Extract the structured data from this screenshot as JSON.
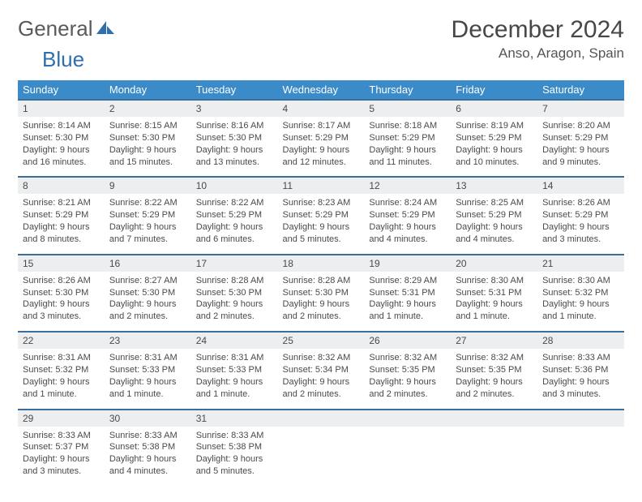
{
  "brand": {
    "word1": "General",
    "word2": "Blue",
    "word1_color": "#5a5a5a",
    "word2_color": "#2f6fae",
    "icon_fill": "#2f6fae"
  },
  "header": {
    "title": "December 2024",
    "location": "Anso, Aragon, Spain"
  },
  "colors": {
    "header_bg": "#3b8bc8",
    "header_text": "#ffffff",
    "row_divider": "#3b6e9a",
    "daynum_bg": "#eceeef",
    "text": "#4a4a4a",
    "page_bg": "#ffffff"
  },
  "weekdays": [
    "Sunday",
    "Monday",
    "Tuesday",
    "Wednesday",
    "Thursday",
    "Friday",
    "Saturday"
  ],
  "weeks": [
    [
      {
        "n": "1",
        "sr": "Sunrise: 8:14 AM",
        "ss": "Sunset: 5:30 PM",
        "dl": "Daylight: 9 hours and 16 minutes."
      },
      {
        "n": "2",
        "sr": "Sunrise: 8:15 AM",
        "ss": "Sunset: 5:30 PM",
        "dl": "Daylight: 9 hours and 15 minutes."
      },
      {
        "n": "3",
        "sr": "Sunrise: 8:16 AM",
        "ss": "Sunset: 5:30 PM",
        "dl": "Daylight: 9 hours and 13 minutes."
      },
      {
        "n": "4",
        "sr": "Sunrise: 8:17 AM",
        "ss": "Sunset: 5:29 PM",
        "dl": "Daylight: 9 hours and 12 minutes."
      },
      {
        "n": "5",
        "sr": "Sunrise: 8:18 AM",
        "ss": "Sunset: 5:29 PM",
        "dl": "Daylight: 9 hours and 11 minutes."
      },
      {
        "n": "6",
        "sr": "Sunrise: 8:19 AM",
        "ss": "Sunset: 5:29 PM",
        "dl": "Daylight: 9 hours and 10 minutes."
      },
      {
        "n": "7",
        "sr": "Sunrise: 8:20 AM",
        "ss": "Sunset: 5:29 PM",
        "dl": "Daylight: 9 hours and 9 minutes."
      }
    ],
    [
      {
        "n": "8",
        "sr": "Sunrise: 8:21 AM",
        "ss": "Sunset: 5:29 PM",
        "dl": "Daylight: 9 hours and 8 minutes."
      },
      {
        "n": "9",
        "sr": "Sunrise: 8:22 AM",
        "ss": "Sunset: 5:29 PM",
        "dl": "Daylight: 9 hours and 7 minutes."
      },
      {
        "n": "10",
        "sr": "Sunrise: 8:22 AM",
        "ss": "Sunset: 5:29 PM",
        "dl": "Daylight: 9 hours and 6 minutes."
      },
      {
        "n": "11",
        "sr": "Sunrise: 8:23 AM",
        "ss": "Sunset: 5:29 PM",
        "dl": "Daylight: 9 hours and 5 minutes."
      },
      {
        "n": "12",
        "sr": "Sunrise: 8:24 AM",
        "ss": "Sunset: 5:29 PM",
        "dl": "Daylight: 9 hours and 4 minutes."
      },
      {
        "n": "13",
        "sr": "Sunrise: 8:25 AM",
        "ss": "Sunset: 5:29 PM",
        "dl": "Daylight: 9 hours and 4 minutes."
      },
      {
        "n": "14",
        "sr": "Sunrise: 8:26 AM",
        "ss": "Sunset: 5:29 PM",
        "dl": "Daylight: 9 hours and 3 minutes."
      }
    ],
    [
      {
        "n": "15",
        "sr": "Sunrise: 8:26 AM",
        "ss": "Sunset: 5:30 PM",
        "dl": "Daylight: 9 hours and 3 minutes."
      },
      {
        "n": "16",
        "sr": "Sunrise: 8:27 AM",
        "ss": "Sunset: 5:30 PM",
        "dl": "Daylight: 9 hours and 2 minutes."
      },
      {
        "n": "17",
        "sr": "Sunrise: 8:28 AM",
        "ss": "Sunset: 5:30 PM",
        "dl": "Daylight: 9 hours and 2 minutes."
      },
      {
        "n": "18",
        "sr": "Sunrise: 8:28 AM",
        "ss": "Sunset: 5:30 PM",
        "dl": "Daylight: 9 hours and 2 minutes."
      },
      {
        "n": "19",
        "sr": "Sunrise: 8:29 AM",
        "ss": "Sunset: 5:31 PM",
        "dl": "Daylight: 9 hours and 1 minute."
      },
      {
        "n": "20",
        "sr": "Sunrise: 8:30 AM",
        "ss": "Sunset: 5:31 PM",
        "dl": "Daylight: 9 hours and 1 minute."
      },
      {
        "n": "21",
        "sr": "Sunrise: 8:30 AM",
        "ss": "Sunset: 5:32 PM",
        "dl": "Daylight: 9 hours and 1 minute."
      }
    ],
    [
      {
        "n": "22",
        "sr": "Sunrise: 8:31 AM",
        "ss": "Sunset: 5:32 PM",
        "dl": "Daylight: 9 hours and 1 minute."
      },
      {
        "n": "23",
        "sr": "Sunrise: 8:31 AM",
        "ss": "Sunset: 5:33 PM",
        "dl": "Daylight: 9 hours and 1 minute."
      },
      {
        "n": "24",
        "sr": "Sunrise: 8:31 AM",
        "ss": "Sunset: 5:33 PM",
        "dl": "Daylight: 9 hours and 1 minute."
      },
      {
        "n": "25",
        "sr": "Sunrise: 8:32 AM",
        "ss": "Sunset: 5:34 PM",
        "dl": "Daylight: 9 hours and 2 minutes."
      },
      {
        "n": "26",
        "sr": "Sunrise: 8:32 AM",
        "ss": "Sunset: 5:35 PM",
        "dl": "Daylight: 9 hours and 2 minutes."
      },
      {
        "n": "27",
        "sr": "Sunrise: 8:32 AM",
        "ss": "Sunset: 5:35 PM",
        "dl": "Daylight: 9 hours and 2 minutes."
      },
      {
        "n": "28",
        "sr": "Sunrise: 8:33 AM",
        "ss": "Sunset: 5:36 PM",
        "dl": "Daylight: 9 hours and 3 minutes."
      }
    ],
    [
      {
        "n": "29",
        "sr": "Sunrise: 8:33 AM",
        "ss": "Sunset: 5:37 PM",
        "dl": "Daylight: 9 hours and 3 minutes."
      },
      {
        "n": "30",
        "sr": "Sunrise: 8:33 AM",
        "ss": "Sunset: 5:38 PM",
        "dl": "Daylight: 9 hours and 4 minutes."
      },
      {
        "n": "31",
        "sr": "Sunrise: 8:33 AM",
        "ss": "Sunset: 5:38 PM",
        "dl": "Daylight: 9 hours and 5 minutes."
      },
      null,
      null,
      null,
      null
    ]
  ]
}
